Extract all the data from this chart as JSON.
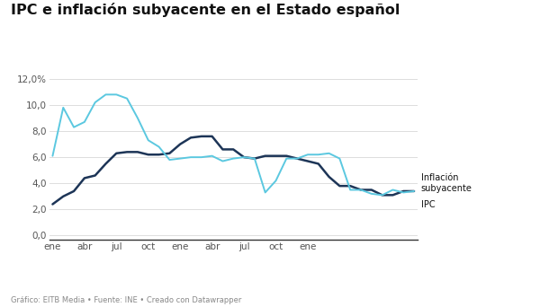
{
  "title": "IPC e inflación subyacente en el Estado español",
  "footnote": "Gráfico: EITB Media • Fuente: INE • Creado con Datawrapper",
  "ipc": [
    6.1,
    9.8,
    8.3,
    8.7,
    10.2,
    10.8,
    10.8,
    10.5,
    9.0,
    7.3,
    6.8,
    5.8,
    5.9,
    6.0,
    6.0,
    6.1,
    5.7,
    5.9,
    6.0,
    5.9,
    3.3,
    4.2,
    5.9,
    5.9,
    6.2,
    6.2,
    6.3,
    5.9,
    3.5,
    3.5,
    3.2,
    3.1,
    3.5,
    3.3,
    3.4
  ],
  "subyacente": [
    2.4,
    3.0,
    3.4,
    4.4,
    4.6,
    5.5,
    6.3,
    6.4,
    6.4,
    6.2,
    6.2,
    6.3,
    7.0,
    7.5,
    7.6,
    7.6,
    6.6,
    6.6,
    6.0,
    5.9,
    6.1,
    6.1,
    6.1,
    5.9,
    5.7,
    5.5,
    4.5,
    3.8,
    3.8,
    3.5,
    3.5,
    3.1,
    3.1,
    3.4,
    3.4
  ],
  "yticks": [
    0.0,
    2.0,
    4.0,
    6.0,
    8.0,
    10.0,
    12.0
  ],
  "ylim": [
    -0.3,
    12.4
  ],
  "color_ipc": "#5bc8e0",
  "color_subyacente": "#1d3557",
  "bg_color": "#ffffff",
  "grid_color": "#d8d8d8"
}
